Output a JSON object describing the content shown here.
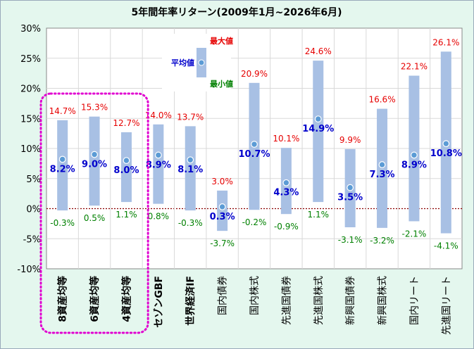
{
  "chart_data": {
    "type": "range-bar",
    "title": "5年間年率リターン(2009年1月~2026年6月)",
    "ylim": [
      -10,
      30
    ],
    "yticks": [
      "-10%",
      "-5%",
      "0%",
      "5%",
      "10%",
      "15%",
      "20%",
      "25%",
      "30%"
    ],
    "ytick_values": [
      -10,
      -5,
      0,
      5,
      10,
      15,
      20,
      25,
      30
    ],
    "categories": [
      "8資産均等",
      "6資産均等",
      "4資産均等",
      "セゾンGBF",
      "世界経済IF",
      "国内債券",
      "国内株式",
      "先進国債券",
      "先進国株式",
      "新興国債券",
      "新興国株式",
      "国内リート",
      "先進国リート"
    ],
    "bold_categories": [
      true,
      true,
      true,
      true,
      true,
      false,
      false,
      false,
      false,
      false,
      false,
      false,
      false
    ],
    "max": [
      14.7,
      15.3,
      12.7,
      14.0,
      13.7,
      3.0,
      20.9,
      10.1,
      24.6,
      9.9,
      16.6,
      22.1,
      26.1
    ],
    "avg": [
      8.2,
      9.0,
      8.0,
      8.9,
      8.1,
      0.3,
      10.7,
      4.3,
      14.9,
      3.5,
      7.3,
      8.9,
      10.8
    ],
    "min": [
      -0.3,
      0.5,
      1.1,
      0.8,
      -0.3,
      -3.7,
      -0.2,
      -0.9,
      1.1,
      -3.1,
      -3.2,
      -2.1,
      -4.1
    ],
    "max_labels": [
      "14.7%",
      "15.3%",
      "12.7%",
      "14.0%",
      "13.7%",
      "3.0%",
      "20.9%",
      "10.1%",
      "24.6%",
      "9.9%",
      "16.6%",
      "22.1%",
      "26.1%"
    ],
    "avg_labels": [
      "8.2%",
      "9.0%",
      "8.0%",
      "8.9%",
      "8.1%",
      "0.3%",
      "10.7%",
      "4.3%",
      "14.9%",
      "3.5%",
      "7.3%",
      "8.9%",
      "10.8%"
    ],
    "min_labels": [
      "-0.3%",
      "0.5%",
      "1.1%",
      "0.8%",
      "-0.3%",
      "-3.7%",
      "-0.2%",
      "-0.9%",
      "1.1%",
      "-3.1%",
      "-3.2%",
      "-2.1%",
      "-4.1%"
    ],
    "legend": {
      "max": "最大値",
      "avg": "平均値",
      "min": "最小値",
      "placement": "top-left"
    },
    "highlight": {
      "categories": [
        "8資産均等",
        "6資産均等",
        "4資産均等"
      ],
      "style": "dotted-magenta-box"
    },
    "colors": {
      "bar": "#a8c0e4",
      "point": "#5b9bd5",
      "max": "#e60000",
      "avg": "#0000cc",
      "min": "#008000",
      "zero_line": "#8b0000",
      "highlight": "#e000d0",
      "background": "#e4f7ee"
    }
  }
}
